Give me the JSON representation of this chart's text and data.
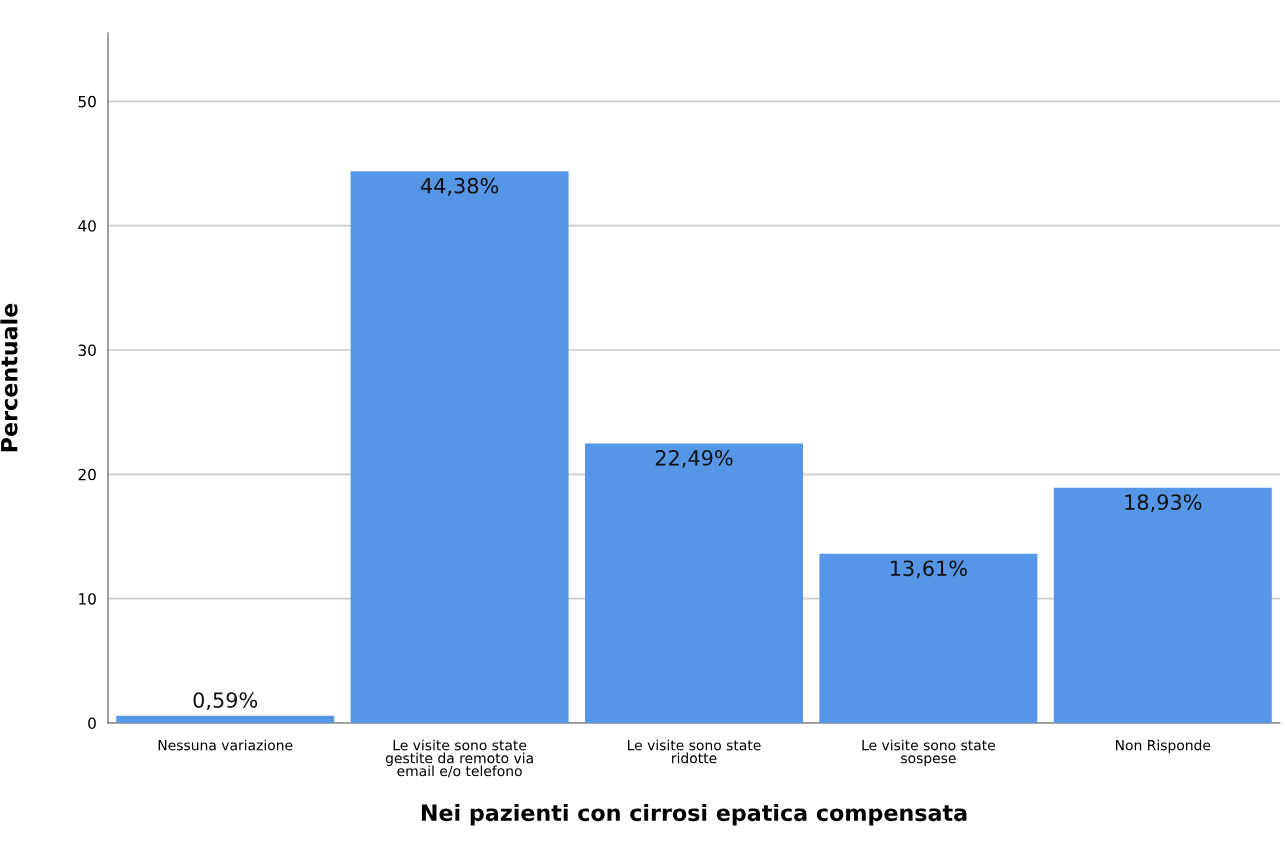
{
  "chart_data": {
    "type": "bar",
    "xlabel": "Nei pazienti con cirrosi epatica compensata",
    "ylabel": "Percentuale",
    "categories": [
      "Nessuna variazione",
      "Le visite sono state\ngestite da remoto via\nemail e/o telefono",
      "Le visite sono state\nridotte",
      "Le visite sono state\nsospese",
      "Non Risponde"
    ],
    "values": [
      0.59,
      44.38,
      22.49,
      13.61,
      18.93
    ],
    "value_labels": [
      "0,59%",
      "44,38%",
      "22,49%",
      "13,61%",
      "18,93%"
    ],
    "color": "#5596e6",
    "ylim": [
      0,
      55.5
    ],
    "yticks": [
      0,
      10,
      20,
      30,
      40,
      50
    ],
    "grid": "y"
  }
}
